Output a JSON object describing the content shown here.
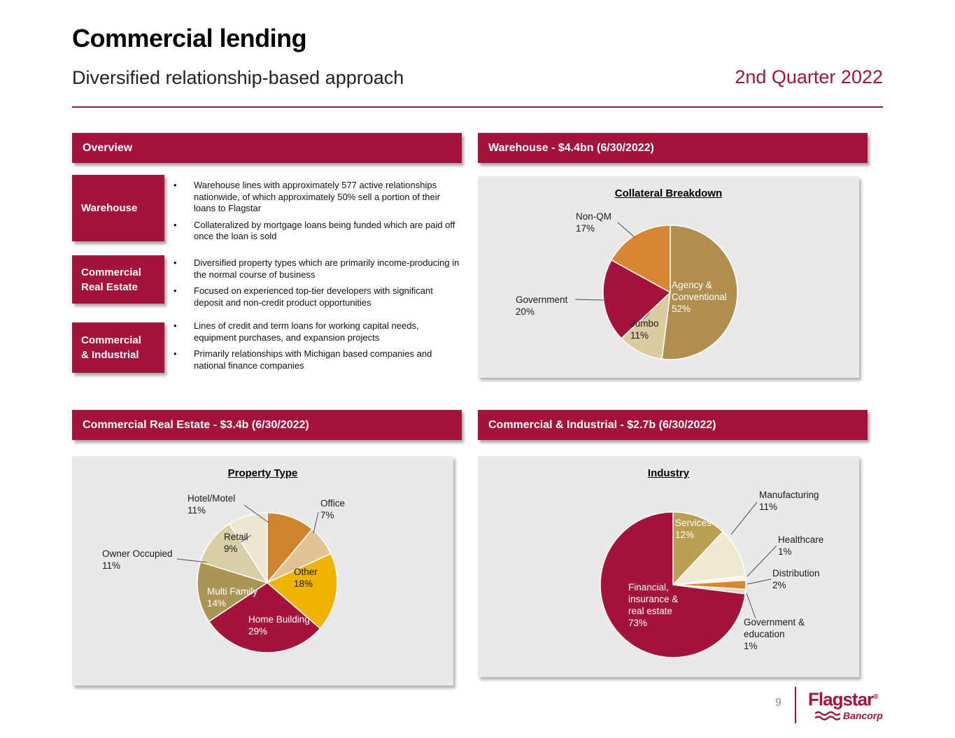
{
  "page": {
    "title": "Commercial lending",
    "subtitle": "Diversified relationship-based approach",
    "quarter": "2nd Quarter 2022",
    "page_number": "9",
    "logo": {
      "word": "Flagstar",
      "reg": "®",
      "sub": "Bancorp"
    }
  },
  "colors": {
    "brand": "#A41339",
    "panel": "#E9E9E9"
  },
  "overview": {
    "header": "Overview",
    "rows": [
      {
        "label_lines": [
          "Warehouse"
        ],
        "bullets": [
          "Warehouse lines with approximately 577 active relationships nationwide, of which approximately 50% sell a portion of their loans to Flagstar",
          "Collateralized by mortgage loans being funded which are paid off once the loan is sold"
        ]
      },
      {
        "label_lines": [
          "Commercial",
          "Real Estate"
        ],
        "bullets": [
          "Diversified property types which are primarily income-producing in the normal course of business",
          "Focused on experienced top-tier developers with significant deposit and non-credit product opportunities"
        ]
      },
      {
        "label_lines": [
          "Commercial",
          "& Industrial"
        ],
        "bullets": [
          "Lines of credit and term loans for working capital needs, equipment purchases, and expansion projects",
          "Primarily relationships with Michigan based companies and national finance companies"
        ]
      }
    ]
  },
  "sections": {
    "warehouse_header": "Warehouse - $4.4bn (6/30/2022)",
    "cre_header": "Commercial Real Estate - $3.4b (6/30/2022)",
    "ci_header": "Commercial & Industrial - $2.7b (6/30/2022)"
  },
  "chart_data": [
    {
      "id": "collateral-breakdown",
      "type": "pie",
      "title": "Collateral Breakdown",
      "slices": [
        {
          "label": "Agency & Conventional",
          "pct": 52,
          "color": "#B08E4C",
          "label_lines": [
            "Agency &",
            "Conventional",
            "52%"
          ]
        },
        {
          "label": "Jumbo",
          "pct": 11,
          "color": "#DACCA0",
          "label_lines": [
            "Jumbo",
            "11%"
          ]
        },
        {
          "label": "Government",
          "pct": 20,
          "color": "#A41339",
          "label_lines": [
            "Government",
            "20%"
          ]
        },
        {
          "label": "Non-QM",
          "pct": 17,
          "color": "#D8862F",
          "label_lines": [
            "Non-QM",
            "17%"
          ]
        }
      ]
    },
    {
      "id": "property-type",
      "type": "pie",
      "title": "Property Type",
      "slices": [
        {
          "label": "Hotel/Motel",
          "pct": 11,
          "color": "#D0832C",
          "label_lines": [
            "Hotel/Motel",
            "11%"
          ]
        },
        {
          "label": "Office",
          "pct": 7,
          "color": "#E2C493",
          "label_lines": [
            "Office",
            "7%"
          ]
        },
        {
          "label": "Other",
          "pct": 18,
          "color": "#F0B400",
          "label_lines": [
            "Other",
            "18%"
          ]
        },
        {
          "label": "Home Building",
          "pct": 29,
          "color": "#A41339",
          "label_lines": [
            "Home Building",
            "29%"
          ]
        },
        {
          "label": "Multi Family",
          "pct": 14,
          "color": "#AB9556",
          "label_lines": [
            "Multi Family",
            "14%"
          ]
        },
        {
          "label": "Owner Occupied",
          "pct": 11,
          "color": "#D9CFA7",
          "label_lines": [
            "Owner Occupied",
            "11%"
          ]
        },
        {
          "label": "Retail",
          "pct": 9,
          "color": "#EDE7D1",
          "label_lines": [
            "Retail",
            "9%"
          ]
        }
      ]
    },
    {
      "id": "industry",
      "type": "pie",
      "title": "Industry",
      "slices": [
        {
          "label": "Services",
          "pct": 12,
          "color": "#BC9E52",
          "label_lines": [
            "Services",
            "12%"
          ]
        },
        {
          "label": "Manufacturing",
          "pct": 11,
          "color": "#EFE9D2",
          "label_lines": [
            "Manufacturing",
            "11%"
          ]
        },
        {
          "label": "Healthcare",
          "pct": 1,
          "color": "#F7F4E8",
          "label_lines": [
            "Healthcare",
            "1%"
          ]
        },
        {
          "label": "Distribution",
          "pct": 2,
          "color": "#D8862F",
          "label_lines": [
            "Distribution",
            "2%"
          ]
        },
        {
          "label": "Government & education",
          "pct": 1,
          "color": "#E4DCC0",
          "label_lines": [
            "Government &",
            "education",
            "1%"
          ]
        },
        {
          "label": "Financial, insurance & real estate",
          "pct": 73,
          "color": "#A41339",
          "label_lines": [
            "Financial,",
            "insurance &",
            "real estate",
            "73%"
          ]
        }
      ]
    }
  ]
}
